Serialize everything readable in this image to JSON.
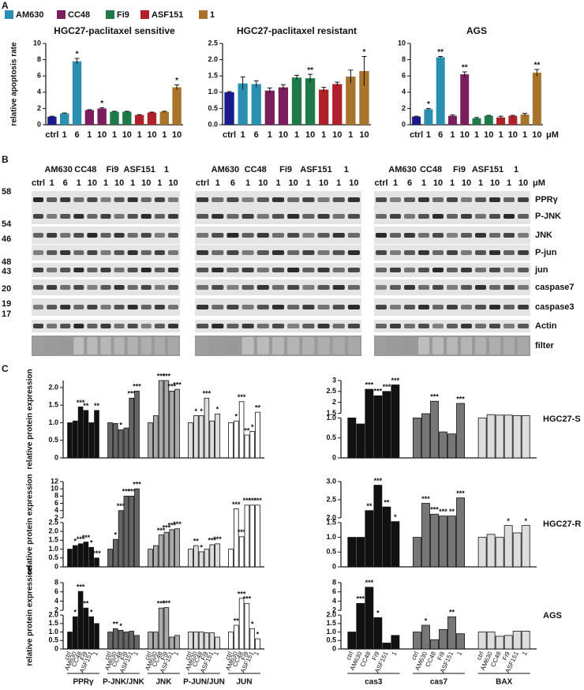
{
  "panel_labels": [
    "A",
    "B",
    "C"
  ],
  "legend": [
    {
      "name": "AM630",
      "color": "#2a8fb0"
    },
    {
      "name": "CC48",
      "color": "#7a1e5e"
    },
    {
      "name": "Fi9",
      "color": "#1f7a4a"
    },
    {
      "name": "ASF151",
      "color": "#b0202a"
    },
    {
      "name": "1",
      "color": "#a8732a"
    }
  ],
  "blots": {
    "groups": [
      "AM630",
      "CC48",
      "Fi9",
      "ASF151",
      "1"
    ],
    "doses": [
      "ctrl",
      "1",
      "6",
      "1",
      "10",
      "1",
      "10",
      "1",
      "10",
      "1",
      "10"
    ],
    "unit": "μM",
    "proteins": [
      "PPRγ",
      "P-JNK",
      "JNK",
      "P-jun",
      "jun",
      "caspase7",
      "caspase3",
      "Actin",
      "filter"
    ],
    "mw": [
      "58",
      "54",
      "46",
      "48",
      "43",
      "20",
      "19",
      "17"
    ]
  },
  "chart_data": [
    {
      "type": "bar",
      "title": "HGC27-paclitaxel sensitive",
      "ylabel": "relative apoptosis rate",
      "categories": [
        "ctrl",
        "1",
        "6",
        "1",
        "10",
        "1",
        "10",
        "1",
        "10",
        "1",
        "10"
      ],
      "colors": [
        "#1a1a8c",
        "#2a8fb0",
        "#2a8fb0",
        "#7a1e5e",
        "#7a1e5e",
        "#1f7a4a",
        "#1f7a4a",
        "#b0202a",
        "#b0202a",
        "#a8732a",
        "#a8732a"
      ],
      "values": [
        1.0,
        1.4,
        7.8,
        1.8,
        2.0,
        1.6,
        1.6,
        1.2,
        1.5,
        1.6,
        4.6
      ],
      "errors": [
        0.05,
        0.05,
        0.35,
        0.05,
        0.1,
        0.05,
        0.05,
        0.05,
        0.05,
        0.05,
        0.3
      ],
      "stars": [
        null,
        null,
        "*",
        null,
        "*",
        null,
        null,
        null,
        null,
        null,
        "*"
      ],
      "ylim": [
        0,
        10
      ],
      "yticks": [
        0,
        2,
        4,
        6,
        8,
        10
      ]
    },
    {
      "type": "bar",
      "title": "HGC27-paclitaxel resistant",
      "categories": [
        "ctrl",
        "1",
        "6",
        "1",
        "10",
        "1",
        "10",
        "1",
        "10",
        "1",
        "10"
      ],
      "colors": [
        "#1a1a8c",
        "#2a8fb0",
        "#2a8fb0",
        "#7a1e5e",
        "#7a1e5e",
        "#1f7a4a",
        "#1f7a4a",
        "#b0202a",
        "#b0202a",
        "#a8732a",
        "#a8732a"
      ],
      "values": [
        1.0,
        1.27,
        1.25,
        1.05,
        1.15,
        1.45,
        1.43,
        1.08,
        1.25,
        1.48,
        1.65
      ],
      "errors": [
        0.02,
        0.2,
        0.1,
        0.08,
        0.08,
        0.07,
        0.12,
        0.07,
        0.06,
        0.2,
        0.45
      ],
      "stars": [
        null,
        null,
        null,
        null,
        null,
        null,
        "**",
        null,
        null,
        null,
        "*"
      ],
      "ylim": [
        0,
        2.5
      ],
      "yticks": [
        {
          "value": 0,
          "label": "0.0"
        },
        0.5,
        {
          "value": 1,
          "label": "1.0"
        },
        1.5,
        {
          "value": 2,
          "label": "2.0"
        },
        2.5
      ]
    },
    {
      "type": "bar",
      "title": "AGS",
      "unit": "μM",
      "categories": [
        "ctrl",
        "1",
        "6",
        "1",
        "10",
        "1",
        "10",
        "1",
        "10",
        "1",
        "10"
      ],
      "colors": [
        "#1a1a8c",
        "#2a8fb0",
        "#2a8fb0",
        "#7a1e5e",
        "#7a1e5e",
        "#1f7a4a",
        "#1f7a4a",
        "#b0202a",
        "#b0202a",
        "#a8732a",
        "#a8732a"
      ],
      "values": [
        1.0,
        1.9,
        8.3,
        1.1,
        6.2,
        0.8,
        1.1,
        0.9,
        1.1,
        1.25,
        6.4
      ],
      "errors": [
        0.05,
        0.1,
        0.1,
        0.1,
        0.3,
        0.1,
        0.05,
        0.15,
        0.05,
        0.15,
        0.4
      ],
      "stars": [
        null,
        "*",
        "**",
        null,
        "**",
        null,
        null,
        null,
        null,
        null,
        "**"
      ],
      "ylim": [
        0,
        10
      ],
      "yticks": [
        0,
        2,
        4,
        6,
        8,
        10
      ]
    },
    {
      "type": "bar",
      "ylabel": "relative protein expression",
      "ylim": [
        0,
        2.2
      ],
      "yticks": [
        0,
        0.5,
        {
          "value": 1,
          "label": "1.0"
        },
        1.5,
        {
          "value": 2,
          "label": "2.0"
        }
      ],
      "series": [
        {
          "color": "#111111",
          "values": [
            1.0,
            1.05,
            1.45,
            1.35,
            1.0,
            1.35
          ],
          "stars": [
            null,
            null,
            "***",
            "**",
            null,
            "**"
          ]
        },
        {
          "color": "#666666",
          "values": [
            1.0,
            0.98,
            0.8,
            0.85,
            1.7,
            1.9
          ],
          "stars": [
            null,
            null,
            "*",
            null,
            "***",
            "***"
          ]
        },
        {
          "color": "#aaaaaa",
          "values": [
            1.0,
            1.2,
            2.2,
            2.2,
            1.9,
            1.95
          ],
          "stars": [
            null,
            null,
            "***",
            "***",
            "***",
            "***"
          ]
        },
        {
          "color": "#dddddd",
          "values": [
            1.0,
            1.2,
            1.2,
            1.7,
            1.05,
            1.25
          ],
          "stars": [
            null,
            "*",
            "*",
            "***",
            null,
            "*"
          ]
        },
        {
          "color": "#ffffff",
          "values": [
            1.0,
            1.05,
            1.6,
            0.65,
            0.75,
            1.3
          ],
          "stars": [
            null,
            "*",
            "***",
            "**",
            "*",
            "**"
          ]
        }
      ]
    },
    {
      "type": "bar",
      "label": "HGC27-S",
      "ylim": [
        0,
        3
      ],
      "ybreak": [
        1,
        1.5
      ],
      "yticks": [
        0,
        0.5,
        {
          "value": 1,
          "label": "1.0"
        }
      ],
      "y_upper_ticks": [
        1.5,
        2,
        2.5,
        3
      ],
      "series": [
        {
          "color": "#111111",
          "values": [
            1.0,
            0.85,
            2.6,
            2.3,
            2.5,
            2.8
          ],
          "stars": [
            null,
            null,
            "***",
            "***",
            "***",
            "***"
          ]
        },
        {
          "color": "#777777",
          "values": [
            1.0,
            1.45,
            2.05,
            0.65,
            0.6,
            1.95
          ],
          "stars": [
            null,
            null,
            "***",
            null,
            null,
            "***"
          ]
        },
        {
          "color": "#dddddd",
          "values": [
            1.0,
            1.35,
            1.3,
            1.3,
            1.25,
            1.25
          ],
          "stars": [
            null,
            null,
            null,
            null,
            null,
            null
          ]
        }
      ]
    },
    {
      "type": "bar",
      "ylabel": "relative protein expression",
      "ylim": [
        0,
        12
      ],
      "ybreak": [
        2.5,
        2
      ],
      "yticks": [
        0,
        0.5,
        {
          "value": 1,
          "label": "1.0"
        },
        1.5,
        {
          "value": 2,
          "label": "2.0"
        },
        2.5
      ],
      "y_upper_ticks": [
        2,
        4,
        6,
        8,
        10,
        12
      ],
      "series": [
        {
          "color": "#111111",
          "values": [
            1.0,
            1.2,
            1.3,
            1.4,
            1.1,
            0.5
          ],
          "stars": [
            null,
            "*",
            "***",
            "***",
            "*",
            "***"
          ]
        },
        {
          "color": "#666666",
          "values": [
            1.0,
            1.55,
            4.0,
            8.0,
            8.0,
            10.0
          ],
          "stars": [
            null,
            "*",
            "***",
            "***",
            "***",
            "***"
          ]
        },
        {
          "color": "#aaaaaa",
          "values": [
            1.0,
            1.2,
            1.8,
            1.95,
            2.1,
            2.15
          ],
          "stars": [
            null,
            null,
            "***",
            "***",
            "***",
            "***"
          ]
        },
        {
          "color": "#dddddd",
          "values": [
            1.0,
            1.2,
            0.85,
            1.0,
            1.25,
            1.3
          ],
          "stars": [
            null,
            "**",
            "*",
            null,
            "***",
            "***"
          ]
        },
        {
          "color": "#ffffff",
          "values": [
            1.0,
            4.5,
            1.7,
            5.5,
            5.5,
            5.5
          ],
          "stars": [
            null,
            "***",
            "***",
            "***",
            "***",
            "***"
          ]
        }
      ]
    },
    {
      "type": "bar",
      "label": "HGC27-R",
      "ylim": [
        0,
        3
      ],
      "ybreak": [
        1.5,
        2
      ],
      "yticks": [
        0,
        0.5,
        {
          "value": 1,
          "label": "1.0"
        },
        1.5
      ],
      "y_upper_ticks": [
        {
          "value": 2,
          "label": "2.0"
        },
        2.5,
        {
          "value": 3,
          "label": "3.0"
        }
      ],
      "series": [
        {
          "color": "#111111",
          "values": [
            1.0,
            1.0,
            2.2,
            2.9,
            2.3,
            1.6
          ],
          "stars": [
            null,
            null,
            "**",
            "***",
            "**",
            "*"
          ]
        },
        {
          "color": "#777777",
          "values": [
            1.0,
            2.4,
            2.1,
            2.05,
            2.05,
            2.55
          ],
          "stars": [
            null,
            "***",
            "***",
            "***",
            "**",
            "***"
          ]
        },
        {
          "color": "#dddddd",
          "values": [
            1.0,
            1.1,
            1.0,
            1.4,
            1.15,
            1.4
          ],
          "stars": [
            null,
            null,
            null,
            "*",
            null,
            "*"
          ]
        }
      ]
    },
    {
      "type": "bar",
      "ylabel": "relative protein expression",
      "categories": [
        "ctrl",
        "AM630",
        "CC48",
        "Fi9",
        "ASF151",
        "1"
      ],
      "ylim": [
        0,
        8
      ],
      "ybreak": [
        2,
        2
      ],
      "yticks": [
        0,
        0.5,
        {
          "value": 1,
          "label": "1.0"
        },
        1.5,
        {
          "value": 2,
          "label": "2.0"
        }
      ],
      "y_upper_ticks": [
        2,
        4,
        6,
        8
      ],
      "series": [
        {
          "name": "PPRγ",
          "color": "#111111",
          "values": [
            1.0,
            1.9,
            6.1,
            2.5,
            1.9,
            1.5
          ],
          "stars": [
            null,
            "*",
            "***",
            "**",
            "*",
            null
          ]
        },
        {
          "name": "P-JNK/JNK",
          "color": "#666666",
          "values": [
            1.0,
            1.2,
            1.1,
            1.0,
            1.05,
            0.8
          ],
          "stars": [
            null,
            "**",
            "*",
            null,
            null,
            null
          ]
        },
        {
          "name": "JNK",
          "color": "#aaaaaa",
          "values": [
            1.0,
            1.0,
            2.5,
            2.6,
            0.7,
            0.8
          ],
          "stars": [
            null,
            null,
            "***",
            "***",
            null,
            null
          ]
        },
        {
          "name": "P-JUN/JUN",
          "color": "#dddddd",
          "values": [
            1.0,
            1.0,
            1.0,
            0.95,
            0.95,
            0.7
          ],
          "stars": [
            null,
            null,
            null,
            null,
            null,
            null
          ]
        },
        {
          "name": "JUN",
          "color": "#ffffff",
          "values": [
            1.0,
            1.4,
            4.6,
            3.5,
            1.2,
            0.6
          ],
          "stars": [
            null,
            "**",
            "***",
            "***",
            "*",
            "*"
          ]
        }
      ]
    },
    {
      "type": "bar",
      "label": "AGS",
      "categories": [
        "ctrl",
        "AM630",
        "CC48",
        "Fi9",
        "ASF151",
        "1"
      ],
      "ylim": [
        0,
        8
      ],
      "ybreak": [
        2,
        2
      ],
      "yticks": [
        0,
        0.5,
        {
          "value": 1,
          "label": "1.0"
        },
        1.5,
        {
          "value": 2,
          "label": "2.0"
        }
      ],
      "y_upper_ticks": [
        2,
        4,
        6,
        8
      ],
      "series": [
        {
          "name": "cas3",
          "color": "#111111",
          "values": [
            1.0,
            3.5,
            7.0,
            1.85,
            0.35,
            0.8
          ],
          "stars": [
            null,
            "***",
            "***",
            "*",
            null,
            null
          ]
        },
        {
          "name": "cas7",
          "color": "#777777",
          "values": [
            1.0,
            1.4,
            0.55,
            1.15,
            1.9,
            0.9
          ],
          "stars": [
            null,
            "*",
            null,
            null,
            "**",
            null
          ]
        },
        {
          "name": "BAX",
          "color": "#dddddd",
          "values": [
            1.0,
            1.0,
            0.75,
            0.8,
            1.05,
            1.05
          ],
          "stars": [
            null,
            null,
            null,
            null,
            null,
            null
          ]
        }
      ]
    }
  ]
}
